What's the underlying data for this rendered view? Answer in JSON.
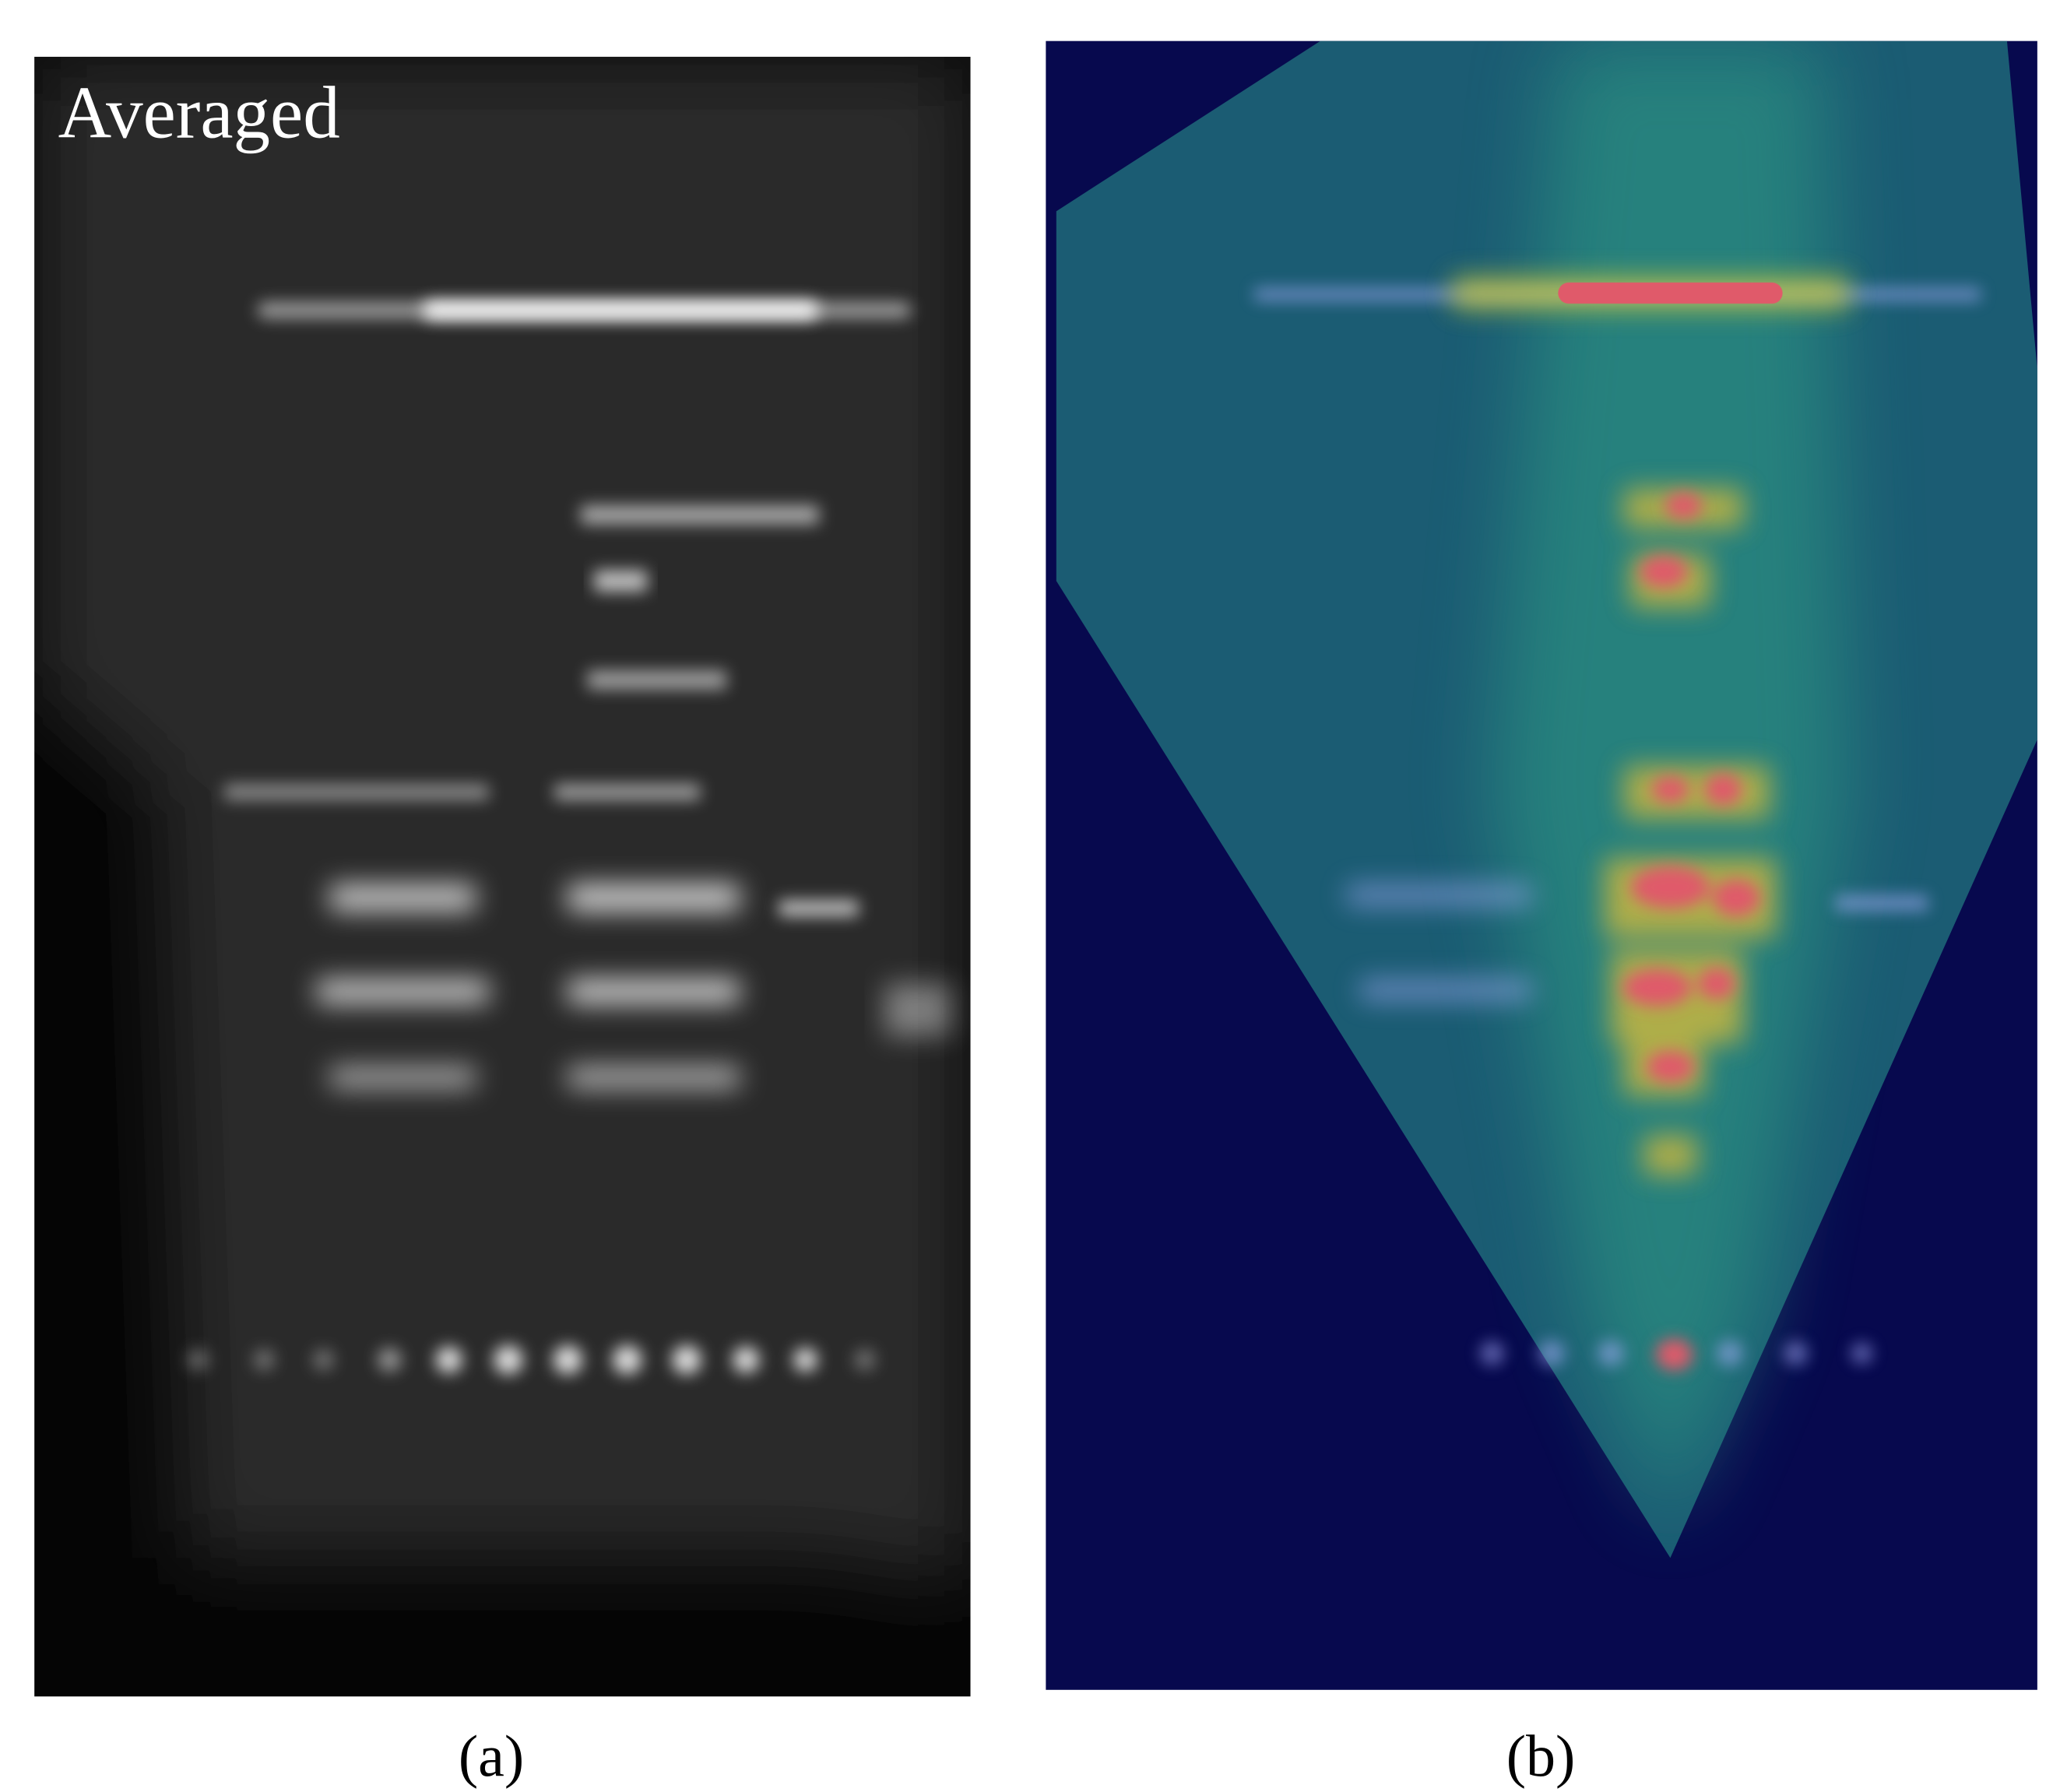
{
  "panels": [
    {
      "label": "(a)",
      "overlay_text": "Averaged"
    },
    {
      "label": "(b)"
    }
  ]
}
